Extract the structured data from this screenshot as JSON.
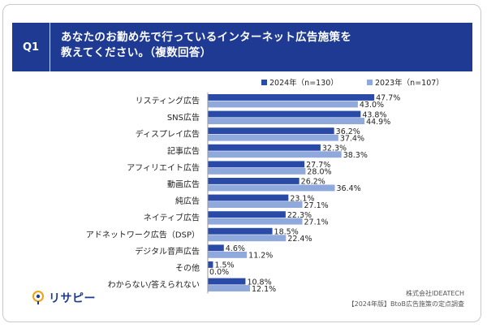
{
  "question": {
    "number": "Q1",
    "title": "あなたのお勤め先で行っているインターネット広告施策を\n教えてください。（複数回答）"
  },
  "chart_data": {
    "type": "bar",
    "orientation": "horizontal",
    "categories": [
      "リスティング広告",
      "SNS広告",
      "ディスプレイ広告",
      "記事広告",
      "アフィリエイト広告",
      "動画広告",
      "純広告",
      "ネイティブ広告",
      "アドネットワーク広告（DSP）",
      "デジタル音声広告",
      "その他",
      "わからない/答えられない"
    ],
    "series": [
      {
        "name": "2024年（n=130）",
        "color": "#2a4aa8",
        "values": [
          47.7,
          43.8,
          36.2,
          32.3,
          27.7,
          26.2,
          23.1,
          22.3,
          18.5,
          4.6,
          1.5,
          10.8
        ],
        "labels": [
          "47.7%",
          "43.8%",
          "36.2%",
          "32.3%",
          "27.7%",
          "26.2%",
          "23.1%",
          "22.3%",
          "18.5%",
          "4.6%",
          "1.5%",
          "10.8%"
        ]
      },
      {
        "name": "2023年（n=107）",
        "color": "#8fa9dc",
        "values": [
          43.0,
          44.9,
          37.4,
          38.3,
          28.0,
          36.4,
          27.1,
          27.1,
          22.4,
          11.2,
          0.0,
          12.1
        ],
        "labels": [
          "43.0%",
          "44.9%",
          "37.4%",
          "38.3%",
          "28.0%",
          "36.4%",
          "27.1%",
          "27.1%",
          "22.4%",
          "11.2%",
          "0.0%",
          "12.1%"
        ]
      }
    ],
    "legend_position": "top-right"
  },
  "footer": {
    "logo_text": "リサピー",
    "source_company": "株式会社IDEATECH",
    "source_survey": "【2024年版】BtoB広告施策の定点調査"
  }
}
